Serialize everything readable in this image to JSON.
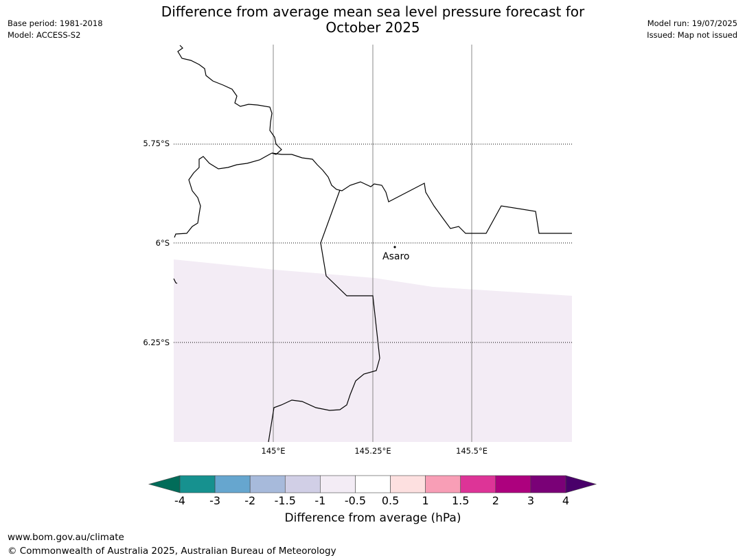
{
  "title_line1": "Difference from average mean sea level pressure forecast for",
  "title_line2": "October 2025",
  "meta_left": {
    "base_period": "Base period: 1981-2018",
    "model": "Model: ACCESS-S2"
  },
  "meta_right": {
    "model_run": "Model run: 19/07/2025",
    "issued": "Issued: Map not issued"
  },
  "map": {
    "lat_labels": [
      "5.75°S",
      "6°S",
      "6.25°S"
    ],
    "lon_labels": [
      "145°E",
      "145.25°E",
      "145.5°E"
    ],
    "place": "Asaro",
    "anomaly_fill_color": "#f3ecf5"
  },
  "colorbar": {
    "label": "Difference from average (hPa)",
    "ticks": [
      "-4",
      "-3",
      "-2",
      "-1.5",
      "-1",
      "-0.5",
      "0.5",
      "1",
      "1.5",
      "2",
      "3",
      "4"
    ],
    "colors": [
      "#16918f",
      "#66a6cf",
      "#a7badb",
      "#d1cfe6",
      "#f3ecf5",
      "#ffffff",
      "#fde0e0",
      "#f89eb6",
      "#dd3497",
      "#ad017e",
      "#7a0177"
    ],
    "extend_low_color": "#016c59",
    "extend_high_color": "#49006a"
  },
  "footer": {
    "url": "www.bom.gov.au/climate",
    "copyright": "© Commonwealth of Australia 2025, Australian Bureau of Meteorology"
  }
}
